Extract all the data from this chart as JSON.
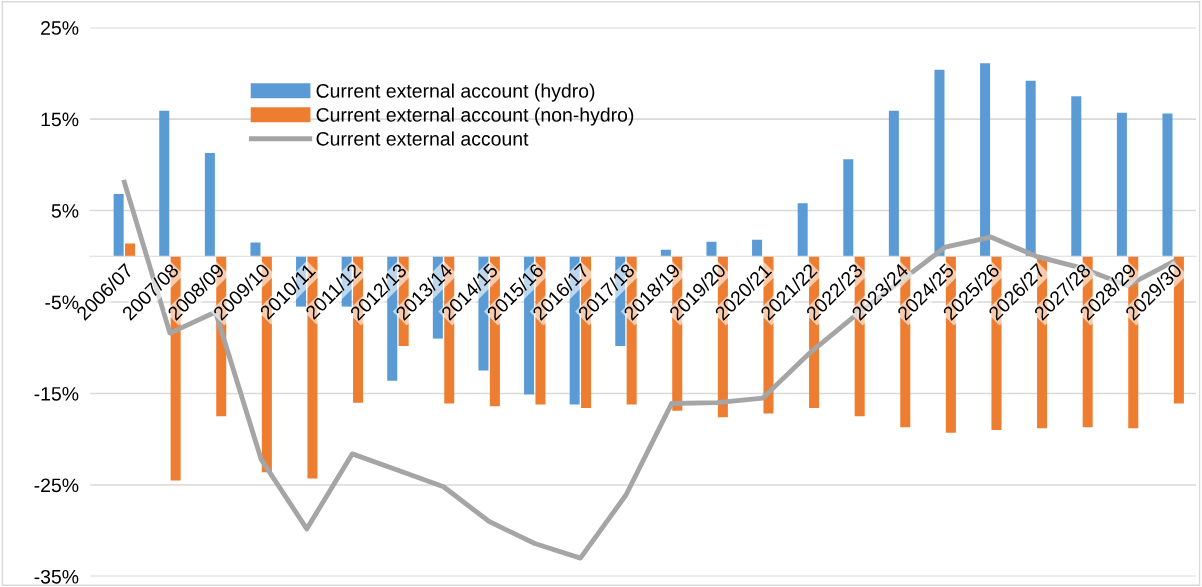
{
  "chart_data": {
    "type": "bar",
    "categories": [
      "2006/07",
      "2007/08",
      "2008/09",
      "2009/10",
      "2010/11",
      "2011/12",
      "2012/13",
      "2013/14",
      "2014/15",
      "2015/16",
      "2016/17",
      "2017/18",
      "2018/19",
      "2019/20",
      "2020/21",
      "2021/22",
      "2022/23",
      "2023/24",
      "2024/25",
      "2025/26",
      "2026/27",
      "2027/28",
      "2028/29",
      "2029/30"
    ],
    "series": [
      {
        "name": "Current external account (hydro)",
        "color": "#5b9bd5",
        "values": [
          6.8,
          15.9,
          11.3,
          1.5,
          -5.5,
          -5.5,
          -13.6,
          -9.0,
          -12.5,
          -15.1,
          -16.2,
          -9.8,
          0.7,
          1.6,
          1.8,
          5.8,
          10.6,
          15.9,
          20.4,
          21.1,
          19.2,
          17.5,
          15.7,
          15.6
        ]
      },
      {
        "name": "Current external account (non-hydro)",
        "color": "#ed7d31",
        "values": [
          1.4,
          -24.5,
          -17.5,
          -23.6,
          -24.3,
          -16.0,
          -9.8,
          -16.1,
          -16.4,
          -16.2,
          -16.6,
          -16.2,
          -16.9,
          -17.6,
          -17.2,
          -16.6,
          -17.5,
          -18.7,
          -19.3,
          -19.0,
          -18.8,
          -18.7,
          -18.8,
          -16.1
        ]
      },
      {
        "name": "Current external account",
        "color": "#a5a5a5",
        "type": "line",
        "values": [
          8.1,
          -8.4,
          -6.1,
          -22.2,
          -29.8,
          -21.6,
          -23.4,
          -25.2,
          -29.0,
          -31.4,
          -33.0,
          -26.1,
          -16.1,
          -16.0,
          -15.5,
          -10.7,
          -6.6,
          -2.8,
          1.0,
          2.1,
          0.0,
          -1.3,
          -3.2,
          -0.6
        ]
      }
    ],
    "ylim": [
      -35,
      25
    ],
    "yticks": [
      {
        "value": -35,
        "label": "-35%"
      },
      {
        "value": -25,
        "label": "-25%"
      },
      {
        "value": -15,
        "label": "-15%"
      },
      {
        "value": -5,
        "label": "-5%"
      },
      {
        "value": 5,
        "label": "5%"
      },
      {
        "value": 15,
        "label": "15%"
      },
      {
        "value": 25,
        "label": "25%"
      }
    ],
    "grid": "y",
    "legend": "top left",
    "marker": "none",
    "line_style": "solid"
  }
}
